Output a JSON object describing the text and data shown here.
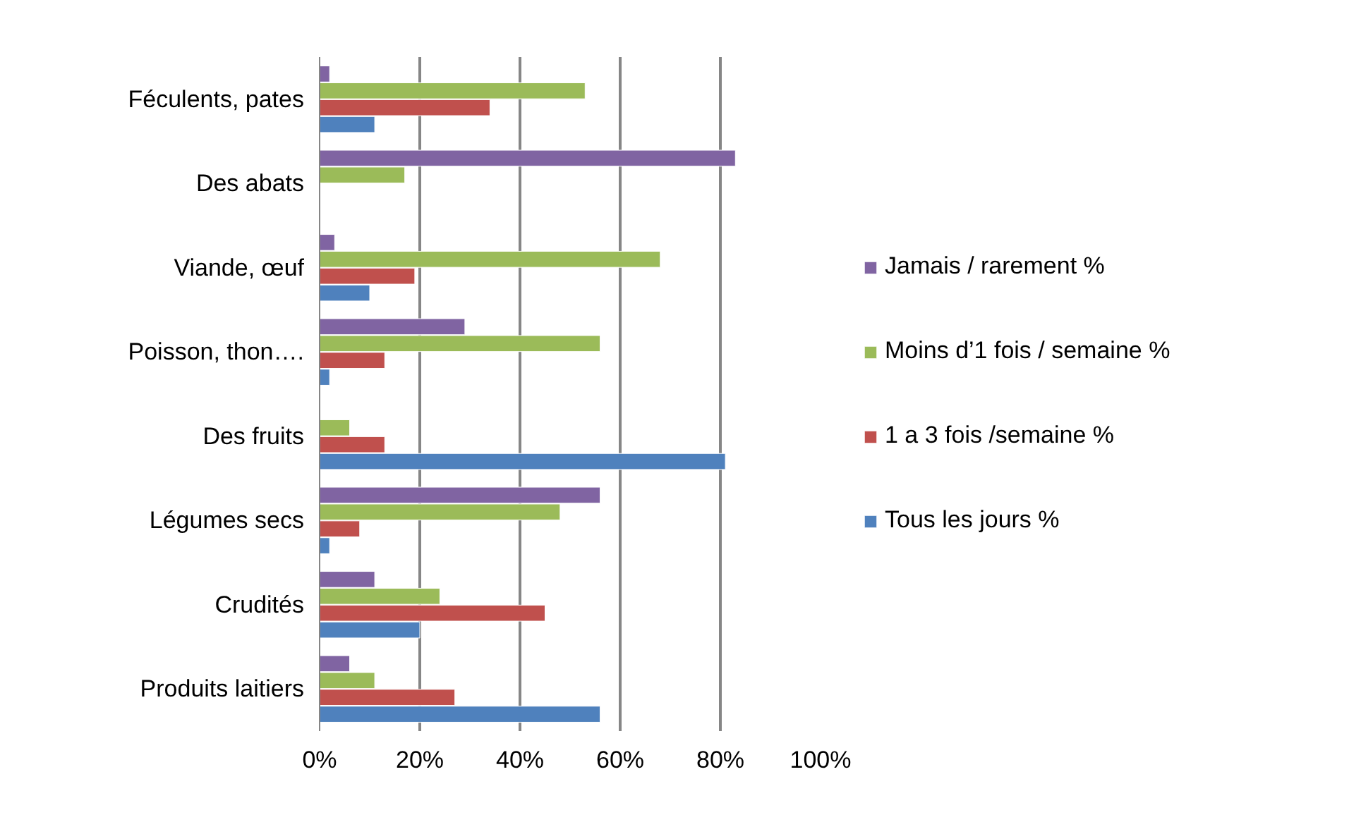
{
  "chart_data": {
    "type": "bar",
    "orientation": "horizontal",
    "categories": [
      "Féculents, pates",
      "Des abats",
      "Viande, œuf",
      "Poisson, thon….",
      "Des fruits",
      "Légumes secs",
      "Crudités",
      "Produits laitiers"
    ],
    "series": [
      {
        "name": "Tous les jours %",
        "color": "#4f81bd",
        "values": [
          11,
          null,
          10,
          2,
          81,
          2,
          20,
          56
        ]
      },
      {
        "name": "1 a 3 fois /semaine %",
        "color": "#c0504d",
        "values": [
          34,
          null,
          19,
          13,
          13,
          8,
          45,
          27
        ]
      },
      {
        "name": "Moins d’1 fois / semaine %",
        "color": "#9bbb59",
        "values": [
          53,
          17,
          68,
          56,
          6,
          48,
          24,
          11
        ]
      },
      {
        "name": "Jamais / rarement %",
        "color": "#8064a2",
        "values": [
          2,
          83,
          3,
          29,
          null,
          56,
          11,
          6
        ]
      }
    ],
    "xlim": [
      0,
      100
    ],
    "xticks": [
      {
        "value": 0,
        "label": "0%"
      },
      {
        "value": 20,
        "label": "20%"
      },
      {
        "value": 40,
        "label": "40%"
      },
      {
        "value": 60,
        "label": "60%"
      },
      {
        "value": 80,
        "label": "80%"
      },
      {
        "value": 100,
        "label": "100%"
      }
    ],
    "grid": "x",
    "legend": "right"
  }
}
